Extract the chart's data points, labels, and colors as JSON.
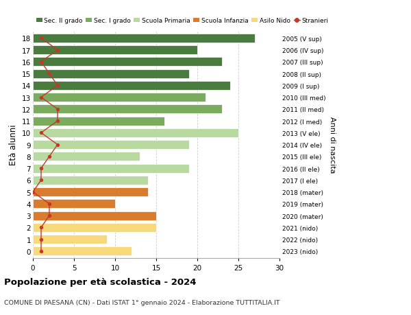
{
  "ages": [
    18,
    17,
    16,
    15,
    14,
    13,
    12,
    11,
    10,
    9,
    8,
    7,
    6,
    5,
    4,
    3,
    2,
    1,
    0
  ],
  "bar_values": [
    27,
    20,
    23,
    19,
    24,
    21,
    23,
    16,
    25,
    19,
    13,
    19,
    14,
    14,
    10,
    15,
    15,
    9,
    12
  ],
  "stranieri": [
    1,
    3,
    1,
    2,
    3,
    1,
    3,
    3,
    1,
    3,
    2,
    1,
    1,
    0,
    2,
    2,
    1,
    1,
    1
  ],
  "right_labels": [
    "2005 (V sup)",
    "2006 (IV sup)",
    "2007 (III sup)",
    "2008 (II sup)",
    "2009 (I sup)",
    "2010 (III med)",
    "2011 (II med)",
    "2012 (I med)",
    "2013 (V ele)",
    "2014 (IV ele)",
    "2015 (III ele)",
    "2016 (II ele)",
    "2017 (I ele)",
    "2018 (mater)",
    "2019 (mater)",
    "2020 (mater)",
    "2021 (nido)",
    "2022 (nido)",
    "2023 (nido)"
  ],
  "bar_colors": [
    "#4a7c3f",
    "#4a7c3f",
    "#4a7c3f",
    "#4a7c3f",
    "#4a7c3f",
    "#7aab5e",
    "#7aab5e",
    "#7aab5e",
    "#b8d9a0",
    "#b8d9a0",
    "#b8d9a0",
    "#b8d9a0",
    "#b8d9a0",
    "#d97c2e",
    "#d97c2e",
    "#d97c2e",
    "#f5d97a",
    "#f5d97a",
    "#f5d97a"
  ],
  "legend_labels": [
    "Sec. II grado",
    "Sec. I grado",
    "Scuola Primaria",
    "Scuola Infanzia",
    "Asilo Nido",
    "Stranieri"
  ],
  "legend_colors": [
    "#4a7c3f",
    "#7aab5e",
    "#b8d9a0",
    "#d97c2e",
    "#f5d97a",
    "#c0392b"
  ],
  "ylabel": "Età alunni",
  "right_ylabel": "Anni di nascita",
  "title": "Popolazione per età scolastica - 2024",
  "subtitle": "COMUNE DI PAESANA (CN) - Dati ISTAT 1° gennaio 2024 - Elaborazione TUTTITALIA.IT",
  "xlim": [
    0,
    30
  ],
  "xticks": [
    0,
    5,
    10,
    15,
    20,
    25,
    30
  ],
  "stranieri_color": "#c0392b",
  "bar_height": 0.75,
  "background_color": "#ffffff",
  "grid_color": "#cccccc"
}
